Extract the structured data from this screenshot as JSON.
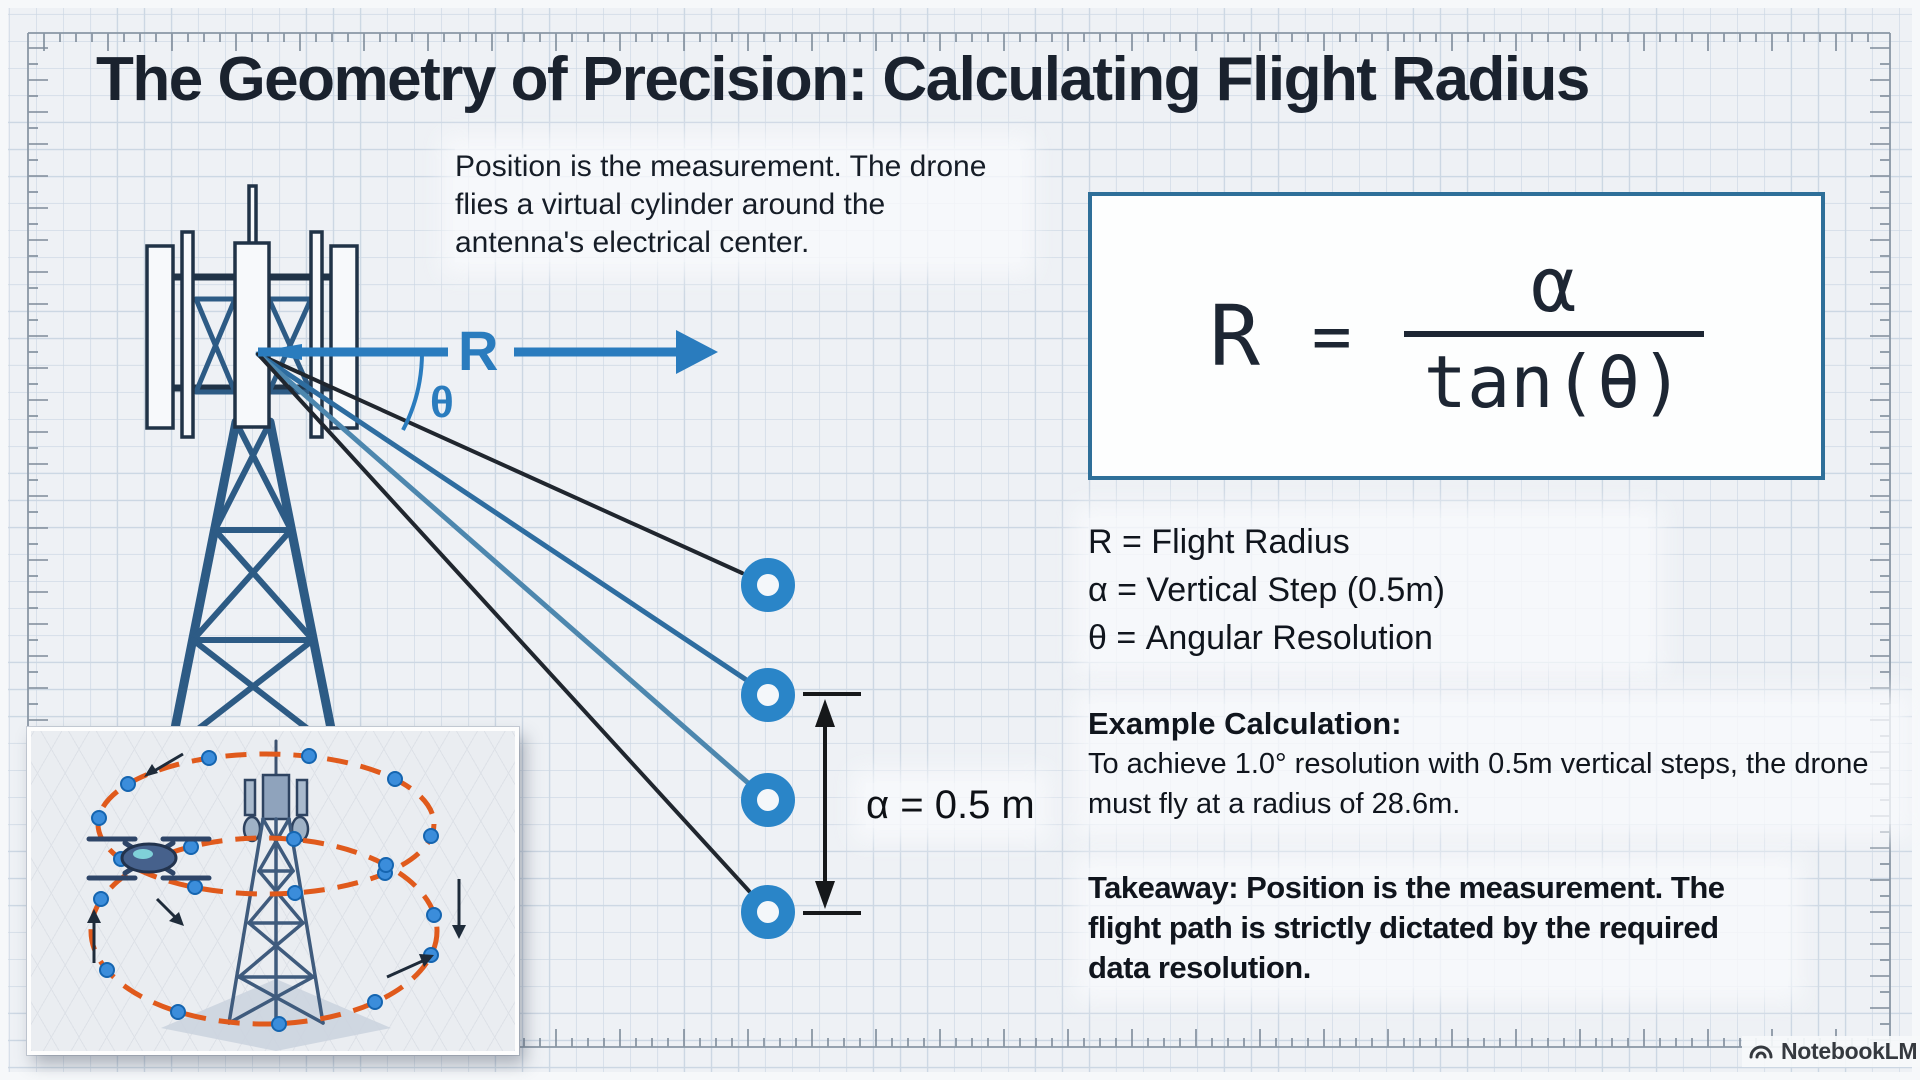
{
  "page": {
    "title": "The Geometry of Precision: Calculating Flight Radius"
  },
  "intro": {
    "text": "Position is the measurement. The drone flies a virtual cylinder around the antenna's electrical center."
  },
  "diagram": {
    "radius_label": "R",
    "theta_label": "θ",
    "alpha_dimension_label": "α = 0.5 m",
    "drone_positions_count": "4"
  },
  "formula": {
    "lhs": "R",
    "equals": "=",
    "numerator": "α",
    "denominator": "tan(θ)"
  },
  "legend": {
    "items": [
      "R = Flight Radius",
      "α = Vertical Step (0.5m)",
      "θ = Angular Resolution"
    ]
  },
  "example": {
    "heading": "Example Calculation:",
    "body": "To achieve 1.0° resolution with 0.5m vertical steps, the drone must fly at a radius of 28.6m."
  },
  "takeaway": {
    "text": "Takeaway: Position is the measurement. The flight path is strictly dictated by the required data resolution."
  },
  "footer": {
    "brand": "NotebookLM"
  },
  "colors": {
    "accent_blue": "#2a7cbe",
    "circle_blue": "#2a85c8",
    "formula_border": "#2e6f99",
    "line_dark": "#20262e",
    "line_blue": "#2e6da0",
    "line_steel": "#4d87ae",
    "tower_steel": "#2d5b85",
    "tower_outline": "#203347",
    "orbit_orange": "#e05a1c",
    "dot_blue": "#3b8ddb",
    "grid_line": "#ccd7e3",
    "background": "#eef1f5",
    "ink": "#10151d"
  }
}
